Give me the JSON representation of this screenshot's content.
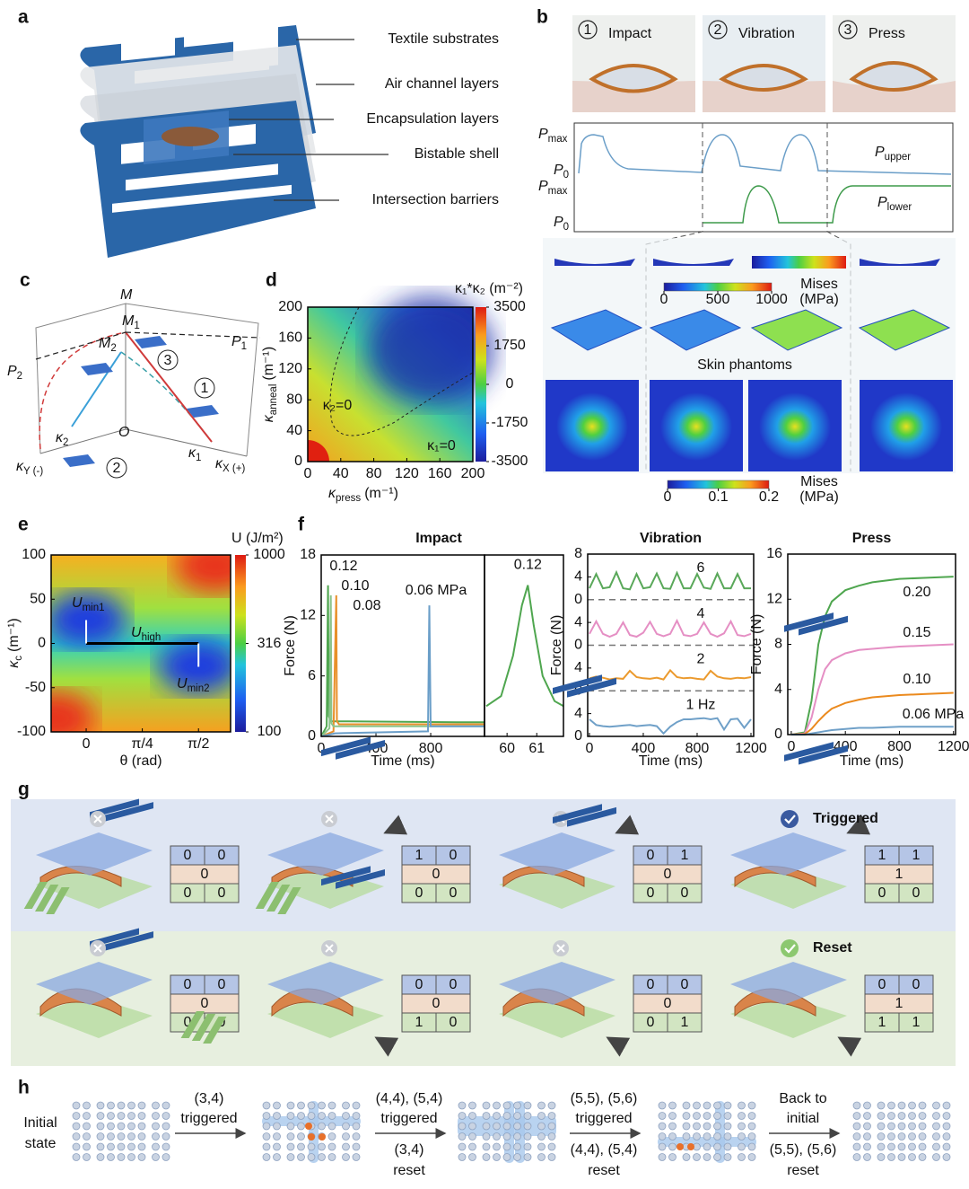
{
  "panels": {
    "a": {
      "label": "a",
      "callouts": [
        "Textile substrates",
        "Air channel layers",
        "Encapsulation layers",
        "Bistable shell",
        "Intersection barriers"
      ]
    },
    "b": {
      "label": "b",
      "states": [
        {
          "number": 1,
          "name": "Impact"
        },
        {
          "number": 2,
          "name": "Vibration"
        },
        {
          "number": 3,
          "name": "Press"
        }
      ],
      "pressure_labels": [
        {
          "symbol": "P",
          "sub": "max"
        },
        {
          "symbol": "P",
          "sub": "0"
        },
        {
          "symbol": "P",
          "sub": "max"
        },
        {
          "symbol": "P",
          "sub": "0"
        }
      ],
      "upper": {
        "symbol": "P",
        "sub": "upper"
      },
      "lower": {
        "symbol": "P",
        "sub": "lower"
      },
      "stress_colorbar": {
        "ticks": [
          0,
          500,
          1000
        ],
        "title": "Mises",
        "unit": "(MPa)"
      },
      "phantom_title": "Skin phantoms",
      "phantom_colorbar": {
        "ticks": [
          0,
          0.1,
          0.2
        ],
        "title": "Mises",
        "unit": "(MPa)"
      }
    },
    "c": {
      "label": "c",
      "points": {
        "M": "M",
        "M1": {
          "symbol": "M",
          "sub": "1"
        },
        "M2": {
          "symbol": "M",
          "sub": "2"
        },
        "P1": {
          "symbol": "P",
          "sub": "1"
        },
        "P2": {
          "symbol": "P",
          "sub": "2"
        },
        "O": "O",
        "k1": {
          "symbol": "κ",
          "sub": "1"
        },
        "k2": {
          "symbol": "κ",
          "sub": "2"
        },
        "ky": {
          "symbol": "κ",
          "sub": "Y (-)"
        },
        "kx": {
          "symbol": "κ",
          "sub": "X (+)"
        }
      },
      "states": [
        1,
        2,
        3
      ]
    },
    "d": {
      "label": "d",
      "xlabel": {
        "symbol": "κ",
        "sub": "press",
        "unit": "(m⁻¹)"
      },
      "ylabel": {
        "symbol": "κ",
        "sub": "anneal",
        "unit": "(m⁻¹)"
      },
      "xlim": [
        0,
        200
      ],
      "xticks": [
        0,
        40,
        80,
        120,
        160,
        200
      ],
      "ylim": [
        0,
        200
      ],
      "yticks": [
        0,
        40,
        80,
        120,
        160,
        200
      ],
      "colorbar": {
        "title": "κ₁*κ₂ (m⁻²)",
        "lim": [
          -3500,
          3500
        ],
        "ticks": [
          -3500,
          -1750,
          0,
          1750,
          3500
        ]
      },
      "contours": [
        "κ₂=0",
        "κ₁=0"
      ]
    },
    "e": {
      "label": "e",
      "xlim": [
        -0.49,
        2.02
      ],
      "xticks": [
        0,
        {
          "value": 0.785,
          "label": "π/4"
        },
        {
          "value": 1.571,
          "label": "π/2"
        }
      ],
      "ylim": [
        -100,
        100
      ],
      "yticks": [
        -100,
        -50,
        0,
        50,
        100
      ],
      "xlabel": "θ (rad)",
      "ylabel": {
        "symbol": "κ",
        "sub": "c",
        "unit": "(m⁻¹)"
      },
      "colorbar": {
        "title": "U (J/m²)",
        "log": true,
        "lim": [
          100,
          1000
        ],
        "ticks": [
          100,
          316,
          1000
        ]
      },
      "annotations": [
        {
          "symbol": "U",
          "sub": "min1"
        },
        {
          "symbol": "U",
          "sub": "high"
        },
        {
          "symbol": "U",
          "sub": "min2"
        }
      ]
    },
    "f": {
      "label": "f",
      "ylabel": "Force (N)",
      "xlabel": "Time (ms)",
      "charts": [
        {
          "type": "line",
          "title": "Impact",
          "title_color": "#7f9a3c",
          "xlim": [
            0,
            1193
          ],
          "xticks": [
            0,
            400,
            800
          ],
          "ylim": [
            0,
            18
          ],
          "yticks": [
            0,
            6,
            12,
            18
          ],
          "series": [
            {
              "name": "0.12",
              "color": "#4fa64f",
              "x": [
                0,
                40,
                50,
                55,
                70,
                200,
                1000,
                1190
              ],
              "values": [
                0,
                1,
                15,
                2,
                1.5,
                1.5,
                1.4,
                1.4
              ]
            },
            {
              "name": "0.10",
              "color": "#e8902a",
              "x": [
                0,
                90,
                110,
                115,
                130,
                300,
                1000,
                1190
              ],
              "values": [
                0,
                0.5,
                14,
                1.5,
                1.2,
                1.2,
                1.2,
                1.2
              ]
            },
            {
              "name": "0.08",
              "color": "#8cc48c",
              "x": [
                0,
                60,
                70,
                75,
                90,
                300,
                1000,
                1190
              ],
              "values": [
                0,
                0.8,
                14,
                1.3,
                1,
                1,
                1,
                1
              ]
            },
            {
              "name": "0.06 MPa",
              "color": "#6a9ec8",
              "x": [
                0,
                100,
                780,
                790,
                800,
                900,
                1000,
                1190
              ],
              "values": [
                0,
                0.3,
                0.5,
                13,
                1,
                1,
                1,
                1
              ]
            }
          ]
        },
        {
          "type": "line",
          "xlim": [
            59.24,
            61.9
          ],
          "xticks": [
            60,
            61
          ],
          "ylim": [
            0,
            18
          ],
          "series": [
            {
              "name": "0.12",
              "color": "#4fa64f",
              "x": [
                59.3,
                59.8,
                60.2,
                60.5,
                60.7,
                60.9,
                61.2,
                61.6,
                61.9
              ],
              "values": [
                3,
                4,
                8,
                13,
                15,
                11,
                6,
                3.5,
                3
              ]
            }
          ]
        },
        {
          "type": "line",
          "title": "Vibration",
          "title_color": "#3f8ea5",
          "xlim": [
            -13,
            1220
          ],
          "xticks": [
            0,
            400,
            800,
            1200
          ],
          "ylim": [
            0,
            32
          ],
          "yticks": [
            0,
            4,
            {
              "value": 8,
              "label": "0"
            },
            {
              "value": 12,
              "label": "4"
            },
            {
              "value": 16,
              "label": "0"
            },
            {
              "value": 20,
              "label": "4"
            },
            {
              "value": 24,
              "label": "0"
            },
            {
              "value": 28,
              "label": "4"
            },
            {
              "value": 32,
              "label": "8"
            }
          ],
          "x": [
            0,
            50,
            100,
            150,
            200,
            250,
            300,
            350,
            400,
            450,
            500,
            550,
            600,
            650,
            700,
            750,
            800,
            850,
            900,
            950,
            1000,
            1050,
            1100,
            1150,
            1200
          ],
          "series": [
            {
              "name": "6",
              "color": "#5aa85a",
              "values": [
                2,
                4.5,
                2,
                2.2,
                4.8,
                2,
                1.8,
                4.5,
                2,
                2.2,
                4.6,
                2,
                1.9,
                4.7,
                2,
                2,
                4.5,
                2.1,
                1.9,
                4.6,
                2,
                2,
                4.5,
                2,
                2
              ]
            },
            {
              "name": "4",
              "color": "#e58fc4",
              "values": [
                2,
                4.2,
                2,
                1.5,
                2,
                4,
                1.8,
                1.5,
                2.2,
                4.1,
                2,
                1.6,
                2,
                4.3,
                1.8,
                1.6,
                2,
                4,
                2,
                1.5,
                2.1,
                4.2,
                1.8,
                1.6,
                2
              ]
            },
            {
              "name": "2",
              "color": "#eb9a2e",
              "values": [
                2.2,
                2.5,
                2.3,
                2,
                2.2,
                2.1,
                3.5,
                2.4,
                2.2,
                2.1,
                2.3,
                2,
                3.6,
                2.4,
                2.2,
                2.3,
                2.1,
                2,
                3.5,
                2.5,
                2.2,
                2.1,
                2.3,
                2.2,
                2.4
              ]
            },
            {
              "name": "1 Hz",
              "color": "#6fa0c8",
              "values": [
                3,
                2,
                1.8,
                1.7,
                1.8,
                1.9,
                2,
                1.8,
                1.9,
                2,
                1.8,
                0.5,
                1.7,
                2.5,
                3,
                3,
                3.1,
                3.2,
                3,
                3.2,
                1.2,
                3,
                3.1,
                1.5,
                3
              ]
            }
          ]
        },
        {
          "type": "line",
          "title": "Press",
          "title_color": "#8a6fae",
          "xlim": [
            -26,
            1215
          ],
          "xticks": [
            0,
            400,
            800,
            1200
          ],
          "ylim": [
            0,
            16
          ],
          "yticks": [
            0,
            4,
            8,
            12,
            16
          ],
          "x": [
            0,
            100,
            150,
            200,
            250,
            300,
            400,
            500,
            600,
            800,
            1000,
            1200
          ],
          "series": [
            {
              "name": "0.20",
              "color": "#4fa64f",
              "values": [
                0,
                0.2,
                3,
                8,
                10.5,
                11.8,
                12.8,
                13.2,
                13.5,
                13.8,
                13.9,
                14
              ]
            },
            {
              "name": "0.15",
              "color": "#e58fc4",
              "values": [
                0,
                0.1,
                1.5,
                4,
                5.8,
                6.6,
                7.2,
                7.5,
                7.6,
                7.8,
                7.9,
                8
              ]
            },
            {
              "name": "0.10",
              "color": "#eb8a1e",
              "values": [
                0,
                0.05,
                0.5,
                1.2,
                1.8,
                2.3,
                2.8,
                3.1,
                3.3,
                3.5,
                3.6,
                3.7
              ]
            },
            {
              "name": "0.06 MPa",
              "color": "#6fa0c8",
              "values": [
                0,
                0,
                0.1,
                0.2,
                0.3,
                0.4,
                0.5,
                0.6,
                0.6,
                0.7,
                0.7,
                0.7
              ]
            }
          ]
        }
      ]
    },
    "g": {
      "label": "g",
      "rows": [
        {
          "title": "Triggered",
          "tables": [
            {
              "top": [
                0,
                0
              ],
              "middle": 0,
              "bottom": [
                0,
                0
              ]
            },
            {
              "top": [
                1,
                0
              ],
              "middle": 0,
              "bottom": [
                0,
                0
              ]
            },
            {
              "top": [
                0,
                1
              ],
              "middle": 0,
              "bottom": [
                0,
                0
              ]
            },
            {
              "top": [
                1,
                1
              ],
              "middle": 1,
              "bottom": [
                0,
                0
              ]
            }
          ]
        },
        {
          "title": "Reset",
          "tables": [
            {
              "top": [
                0,
                0
              ],
              "middle": 0,
              "bottom": [
                0,
                0
              ]
            },
            {
              "top": [
                0,
                0
              ],
              "middle": 0,
              "bottom": [
                1,
                0
              ]
            },
            {
              "top": [
                0,
                0
              ],
              "middle": 0,
              "bottom": [
                0,
                1
              ]
            },
            {
              "top": [
                0,
                0
              ],
              "middle": 1,
              "bottom": [
                1,
                1
              ]
            }
          ]
        }
      ]
    },
    "h": {
      "label": "h",
      "initial": [
        "Initial",
        "state"
      ],
      "steps": [
        {
          "above": [
            "(3,4)",
            "triggered"
          ]
        },
        {
          "above": [
            "(4,4), (5,4)",
            "triggered"
          ],
          "below": [
            "(3,4)",
            "reset"
          ]
        },
        {
          "above": [
            "(5,5), (5,6)",
            "triggered"
          ],
          "below": [
            "(4,4), (5,4)",
            "reset"
          ]
        },
        {
          "above": [
            "Back to",
            "initial"
          ],
          "below": [
            "(5,5), (5,6)",
            "reset"
          ]
        }
      ]
    }
  }
}
